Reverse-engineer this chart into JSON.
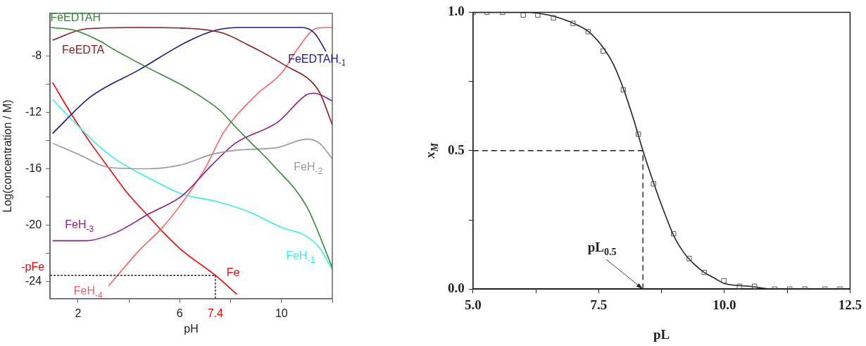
{
  "chart_data": [
    {
      "type": "line",
      "xlabel": "pH",
      "ylabel": "Log(concentration / M)",
      "xlim": [
        0.9,
        12
      ],
      "ylim": [
        -25.2,
        -5
      ],
      "xticks": [
        2,
        {
          "value": 4,
          "label": null
        },
        6,
        {
          "value": 8,
          "label": null
        },
        10,
        {
          "value": 12,
          "label": null
        }
      ],
      "yticks": [
        -8,
        {
          "value": -10,
          "label": null
        },
        -12,
        {
          "value": -14,
          "label": null
        },
        -16,
        {
          "value": -18,
          "label": null
        },
        -20,
        {
          "value": -22,
          "label": null
        },
        -24
      ],
      "grid": false,
      "series": [
        {
          "name": "FeEDTAH",
          "color": "#2e8b2e",
          "x": [
            0.93,
            1.86,
            2.9,
            3.36,
            4.69,
            6.3,
            7.6,
            8.17,
            8.66,
            9.7,
            11.0,
            12
          ],
          "values": [
            -6.0,
            -6.2,
            -7.0,
            -7.5,
            -8.8,
            -10.3,
            -11.9,
            -13.0,
            -13.9,
            -15.8,
            -18.7,
            -23.0
          ]
        },
        {
          "name": "FeEDTA",
          "color": "#8b1a1a",
          "x": [
            1.0,
            2.3,
            4.4,
            6.25,
            7.7,
            8.65,
            9.5,
            10.26,
            11.1,
            11.5,
            12
          ],
          "values": [
            -6.9,
            -6.1,
            -6.0,
            -6.05,
            -6.4,
            -7.2,
            -8.0,
            -8.8,
            -9.7,
            -10.6,
            -12.9
          ]
        },
        {
          "name": "FeEDTAH$_{-1}$",
          "color": "#1a1a8b",
          "x": [
            1.0,
            2.5,
            4.4,
            6.3,
            7.4,
            8.4,
            10.8,
            11.3,
            11.75
          ],
          "values": [
            -13.5,
            -10.9,
            -9.0,
            -7.0,
            -6.2,
            -6.0,
            -6.0,
            -6.4,
            -7.7
          ]
        },
        {
          "name": "FeH$_{-2}$",
          "color": "#999999",
          "x": [
            1.0,
            2.05,
            3.2,
            4.78,
            6.1,
            7.23,
            8.18,
            9.85,
            11.0,
            11.5,
            12
          ],
          "values": [
            -14.2,
            -15.0,
            -15.9,
            -16.0,
            -15.7,
            -15.0,
            -14.7,
            -14.5,
            -13.9,
            -14.2,
            -15.3
          ]
        },
        {
          "name": "FeH$_{-3}$",
          "color": "#8b1a8b",
          "x": [
            1.0,
            2.3,
            3.45,
            4.78,
            6.1,
            7.23,
            8.18,
            9.85,
            11.0,
            11.3,
            12
          ],
          "values": [
            -21.1,
            -21.1,
            -20.55,
            -19.2,
            -17.9,
            -15.8,
            -14.2,
            -12.7,
            -10.75,
            -10.65,
            -11.2
          ]
        },
        {
          "name": "FeH$_{-1}$",
          "color": "#33f0f0",
          "x": [
            1.0,
            1.85,
            2.7,
            3.45,
            4.4,
            4.88,
            6.1,
            7.4,
            8.65,
            10.06,
            10.9,
            11.5,
            12
          ],
          "values": [
            -11.1,
            -12.7,
            -14.2,
            -15.3,
            -16.3,
            -16.75,
            -17.8,
            -18.3,
            -19.0,
            -20.2,
            -20.7,
            -21.6,
            -23.15
          ]
        },
        {
          "name": "FeH$_{-4}$",
          "color": "#ff6060",
          "x": [
            3.2,
            4.4,
            5.35,
            6.3,
            7.05,
            7.7,
            8.93,
            10.06,
            10.6,
            11.4,
            12
          ],
          "values": [
            -24.3,
            -21.8,
            -20.1,
            -17.9,
            -15.8,
            -13.5,
            -10.9,
            -9.1,
            -7.6,
            -6.05,
            -6.0
          ]
        },
        {
          "name": "Fe",
          "color": "#ff0000",
          "x": [
            1.0,
            1.76,
            2.5,
            3.27,
            3.93,
            4.68,
            5.35,
            6.1,
            7.4,
            8.25
          ],
          "values": [
            -9.9,
            -12.2,
            -14.2,
            -16.1,
            -17.7,
            -19.2,
            -20.5,
            -21.8,
            -23.55,
            -24.9
          ]
        }
      ],
      "ref_lines": [
        {
          "axis": "x",
          "value": 7.4,
          "label": "7.4"
        },
        {
          "axis": "y",
          "value": -23.55,
          "label": "-pFe"
        }
      ]
    },
    {
      "type": "scatter",
      "xlabel": "pL",
      "ylabel": "x$_{M}$",
      "xlim": [
        5,
        12.5
      ],
      "ylim": [
        0,
        1
      ],
      "xticks": [
        {
          "value": 5,
          "label": "5.0"
        },
        {
          "value": 6.25,
          "label": null
        },
        {
          "value": 7.5,
          "label": "7.5"
        },
        {
          "value": 8.75,
          "label": null
        },
        {
          "value": 10,
          "label": "10.0"
        },
        {
          "value": 11.25,
          "label": null
        },
        {
          "value": 12.5,
          "label": "12.5"
        }
      ],
      "yticks": [
        {
          "value": 0,
          "label": "0.0"
        },
        {
          "value": 0.25,
          "label": null
        },
        {
          "value": 0.5,
          "label": "0.5"
        },
        {
          "value": 0.75,
          "label": null
        },
        {
          "value": 1,
          "label": "1.0"
        }
      ],
      "grid": false,
      "series": [
        {
          "marker": "square",
          "color": "#555555",
          "x": [
            5.0,
            5.28,
            5.59,
            6.0,
            6.29,
            6.6,
            6.99,
            7.29,
            7.59,
            7.99,
            8.29,
            8.59,
            8.99,
            9.3,
            9.6,
            9.99,
            10.3,
            10.6,
            11.0,
            11.3,
            11.6,
            12.0,
            12.3
          ],
          "values": [
            1.0,
            1.0,
            1.0,
            0.99,
            0.99,
            0.98,
            0.96,
            0.93,
            0.86,
            0.72,
            0.56,
            0.38,
            0.2,
            0.11,
            0.06,
            0.03,
            0.01,
            0.01,
            0.0,
            0.0,
            0.0,
            0.0,
            0.0
          ]
        },
        {
          "type": "line",
          "color": "#222222",
          "x": [
            5,
            6,
            6.5,
            7,
            7.3,
            7.6,
            7.8,
            8.0,
            8.2,
            8.38,
            8.6,
            8.8,
            9.0,
            9.2,
            9.4,
            9.6,
            9.8,
            10.0,
            10.5,
            11,
            12.5
          ],
          "values": [
            1.0,
            1.0,
            0.99,
            0.96,
            0.93,
            0.87,
            0.81,
            0.72,
            0.61,
            0.5,
            0.38,
            0.28,
            0.19,
            0.13,
            0.09,
            0.06,
            0.04,
            0.02,
            0.01,
            0.0,
            0.0
          ]
        }
      ],
      "ref_lines": [
        {
          "axis": "x",
          "value": 8.38
        },
        {
          "axis": "y",
          "value": 0.5
        }
      ],
      "annotations": [
        {
          "text": "pL$_{0.5}$",
          "x": 8.38,
          "y": 0
        }
      ]
    }
  ]
}
